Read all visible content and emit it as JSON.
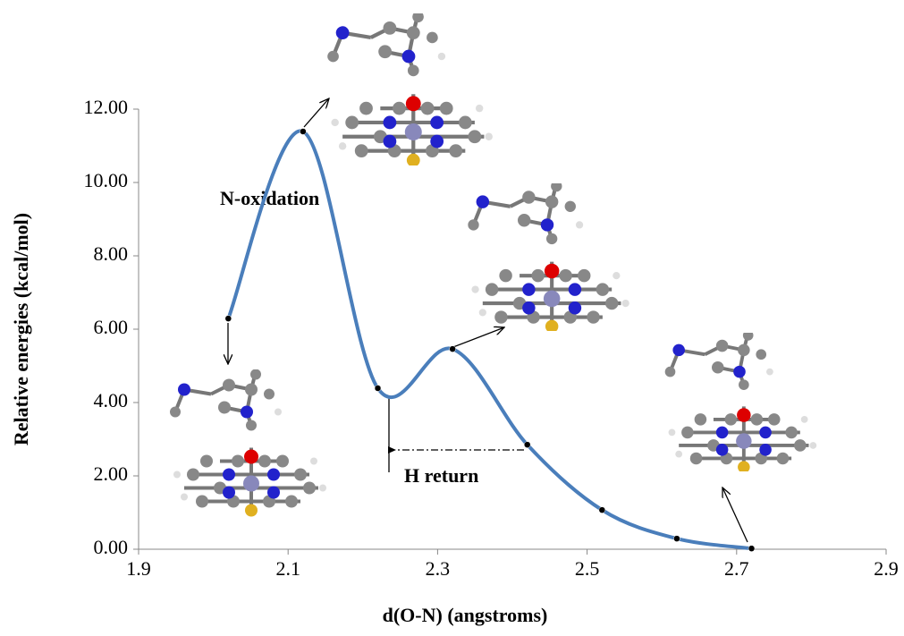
{
  "chart_data": {
    "type": "line",
    "x_label": "d(O-N) (angstroms)",
    "y_label": "Relative energies (kcal/mol)",
    "annotations": [
      "N-oxidation",
      "H return"
    ],
    "series": [
      {
        "color": "#4a7ebb",
        "x": [
          2.02,
          2.12,
          2.22,
          2.32,
          2.42,
          2.52,
          2.62,
          2.72
        ],
        "values": [
          6.29,
          11.39,
          4.39,
          5.46,
          2.85,
          1.07,
          0.29,
          0.02
        ]
      }
    ],
    "xlim": [
      1.9,
      2.9
    ],
    "xticks": [
      1.9,
      2.1,
      2.3,
      2.5,
      2.7,
      2.9
    ],
    "ylim": [
      0,
      12
    ],
    "yticks": [
      {
        "value": 0,
        "label": "0.00"
      },
      {
        "value": 2,
        "label": "2.00"
      },
      {
        "value": 4,
        "label": "4.00"
      },
      {
        "value": 6,
        "label": "6.00"
      },
      {
        "value": 8,
        "label": "8.00"
      },
      {
        "value": 10,
        "label": "10.00"
      },
      {
        "value": 12,
        "label": "12.00"
      }
    ],
    "smooth": true
  }
}
